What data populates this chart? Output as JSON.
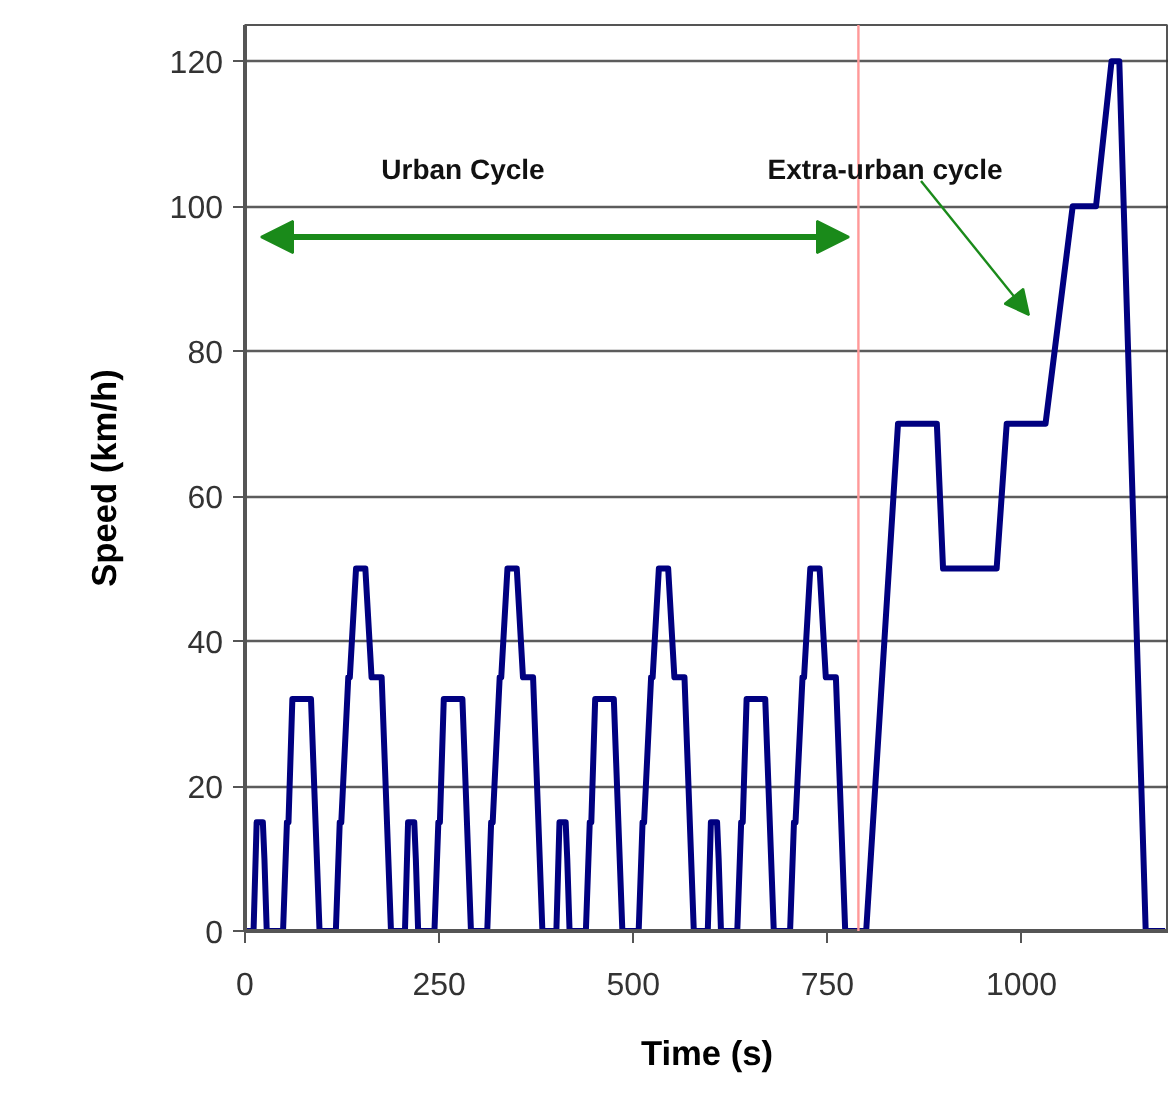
{
  "chart_data": {
    "type": "line",
    "xlabel": "Time (s)",
    "ylabel": "Speed (km/h)",
    "x": [
      0,
      11,
      15,
      23,
      25,
      28,
      49,
      54,
      56,
      61,
      85,
      96,
      117,
      122,
      124,
      133,
      135,
      143,
      155,
      163,
      176,
      188,
      195,
      206,
      210,
      218,
      220,
      223,
      244,
      249,
      251,
      256,
      280,
      291,
      312,
      317,
      319,
      328,
      330,
      338,
      350,
      358,
      371,
      383,
      390,
      401,
      405,
      413,
      415,
      418,
      439,
      444,
      446,
      451,
      475,
      486,
      507,
      512,
      514,
      523,
      525,
      533,
      545,
      553,
      566,
      578,
      585,
      596,
      600,
      608,
      610,
      613,
      634,
      639,
      641,
      646,
      670,
      681,
      702,
      707,
      709,
      718,
      720,
      728,
      740,
      748,
      761,
      773,
      800,
      841,
      891,
      899,
      968,
      981,
      1031,
      1066,
      1096,
      1116,
      1126,
      1160,
      1185
    ],
    "series": [
      {
        "color": "#000080",
        "values": [
          0,
          0,
          15,
          15,
          10,
          0,
          0,
          15,
          15,
          32,
          32,
          0,
          0,
          15,
          15,
          35,
          35,
          50,
          50,
          35,
          35,
          0,
          0,
          0,
          15,
          15,
          10,
          0,
          0,
          15,
          15,
          32,
          32,
          0,
          0,
          15,
          15,
          35,
          35,
          50,
          50,
          35,
          35,
          0,
          0,
          0,
          15,
          15,
          10,
          0,
          0,
          15,
          15,
          32,
          32,
          0,
          0,
          15,
          15,
          35,
          35,
          50,
          50,
          35,
          35,
          0,
          0,
          0,
          15,
          15,
          10,
          0,
          0,
          15,
          15,
          32,
          32,
          0,
          0,
          15,
          15,
          35,
          35,
          50,
          50,
          35,
          35,
          0,
          0,
          70,
          70,
          50,
          50,
          70,
          70,
          100,
          100,
          120,
          120,
          0,
          0
        ]
      }
    ],
    "xlim": [
      0,
      1190
    ],
    "ylim": [
      0,
      125
    ],
    "xticks": [
      0,
      250,
      500,
      750,
      1000
    ],
    "yticks": [
      0,
      20,
      40,
      60,
      80,
      100,
      120
    ],
    "grid": "y",
    "marker": "none",
    "line_style": "solid",
    "ref_lines": [
      {
        "axis": "x",
        "value": 790,
        "label": null,
        "color": "#ff9999"
      }
    ],
    "annotations": [
      "Urban Cycle",
      "Extra-urban cycle"
    ]
  }
}
